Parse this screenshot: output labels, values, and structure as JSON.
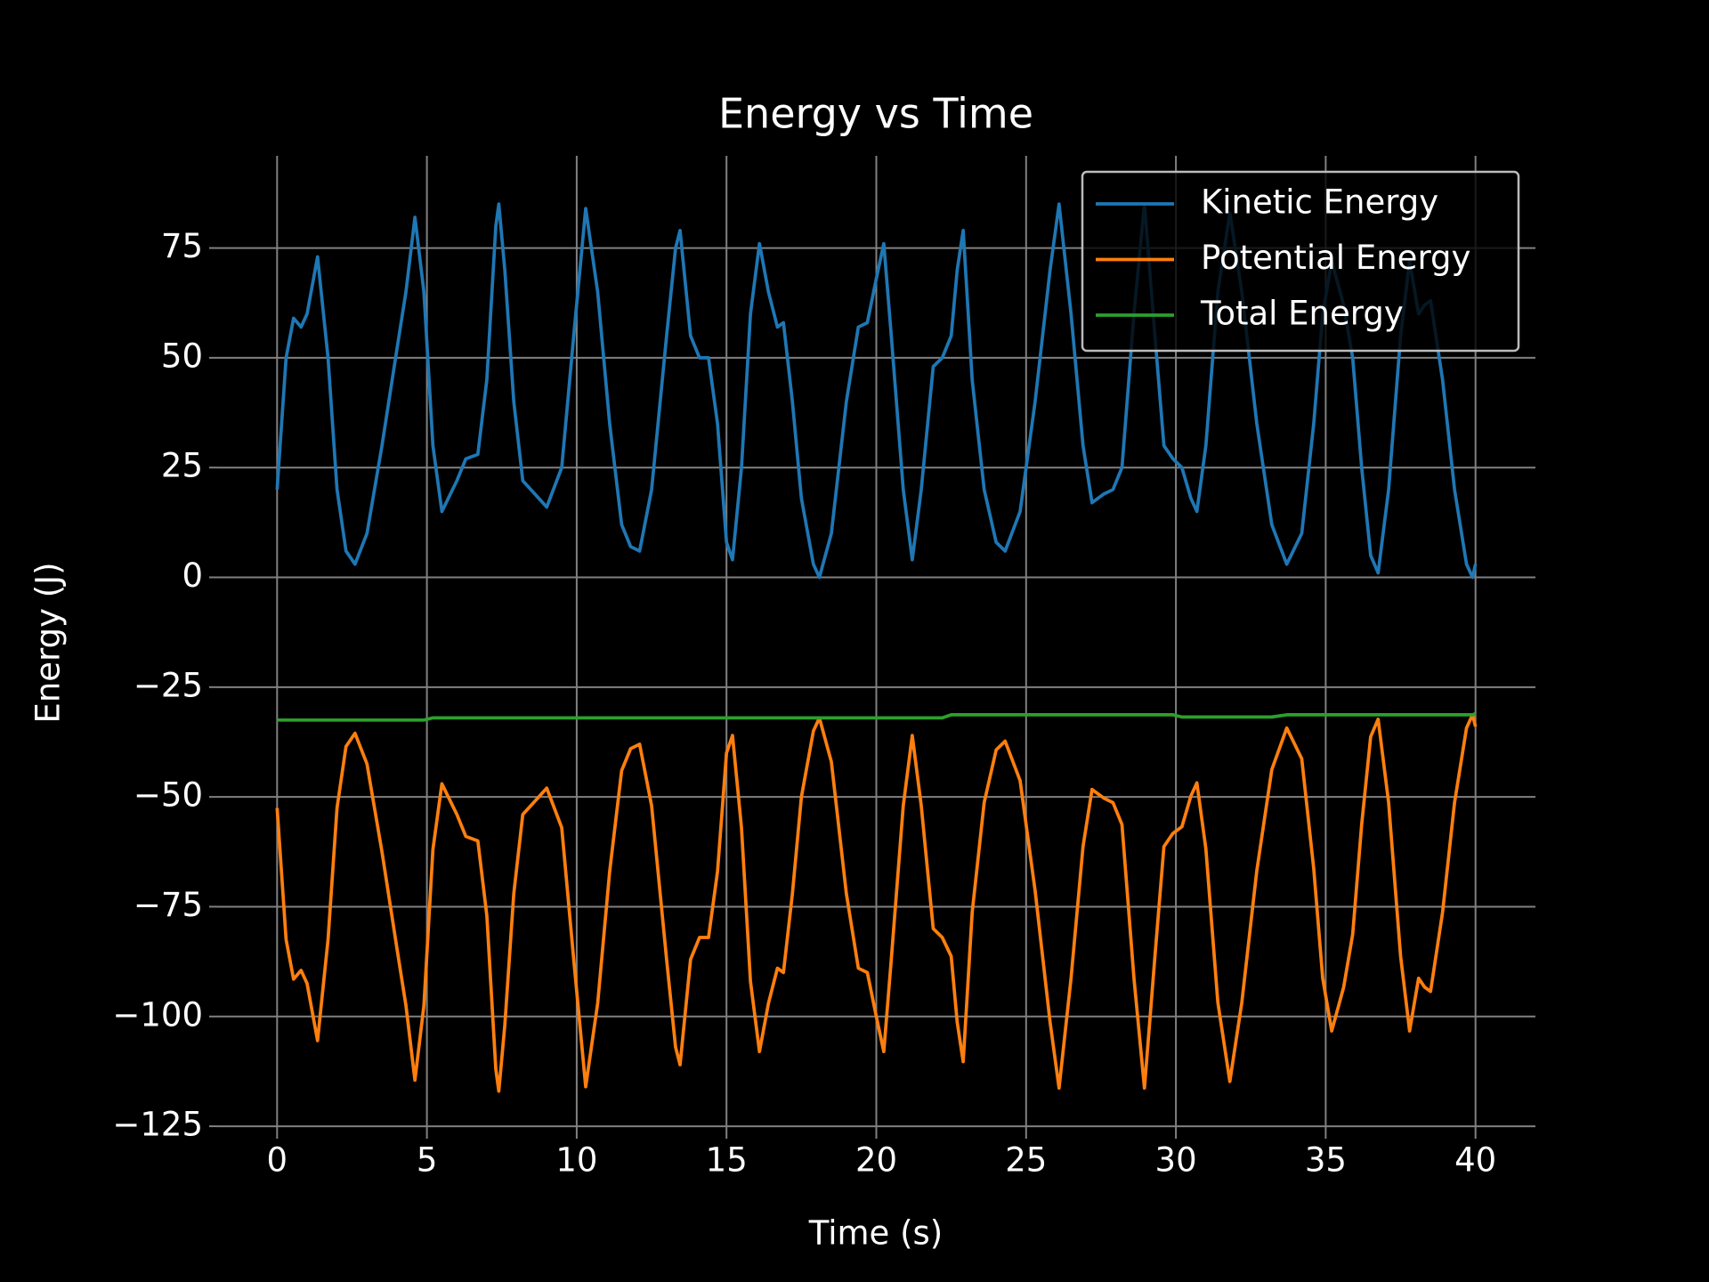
{
  "chart_data": {
    "type": "line",
    "title": "Energy vs Time",
    "xlabel": "Time (s)",
    "ylabel": "Energy (J)",
    "x": [
      0,
      0.3,
      0.55,
      0.8,
      1.0,
      1.35,
      1.7,
      2.0,
      2.3,
      2.6,
      3.0,
      3.5,
      4.0,
      4.3,
      4.6,
      4.9,
      5.2,
      5.5,
      6.0,
      6.3,
      6.7,
      7.0,
      7.3,
      7.4,
      7.6,
      7.9,
      8.2,
      8.6,
      9.0,
      9.5,
      9.9,
      10.3,
      10.7,
      11.1,
      11.5,
      11.8,
      12.1,
      12.5,
      13.0,
      13.3,
      13.45,
      13.8,
      14.1,
      14.4,
      14.7,
      15.0,
      15.2,
      15.5,
      15.8,
      16.1,
      16.4,
      16.7,
      16.9,
      17.2,
      17.5,
      17.9,
      18.1,
      18.5,
      19.0,
      19.4,
      19.7,
      20.0,
      20.25,
      20.5,
      20.9,
      21.2,
      21.5,
      21.9,
      22.2,
      22.5,
      22.7,
      22.9,
      23.2,
      23.6,
      24.0,
      24.3,
      24.8,
      25.3,
      25.8,
      26.1,
      26.5,
      26.9,
      27.2,
      27.6,
      27.9,
      28.2,
      28.6,
      28.95,
      29.3,
      29.6,
      29.9,
      30.2,
      30.5,
      30.7,
      31.0,
      31.4,
      31.8,
      32.2,
      32.7,
      33.2,
      33.7,
      34.2,
      34.6,
      34.9,
      35.2,
      35.6,
      35.9,
      36.2,
      36.5,
      36.75,
      37.1,
      37.5,
      37.8,
      38.1,
      38.3,
      38.5,
      38.9,
      39.3,
      39.7,
      39.9,
      40.0
    ],
    "series": [
      {
        "name": "Kinetic Energy",
        "color": "#1f77b4",
        "values": [
          20,
          50,
          59,
          57,
          60,
          73,
          50,
          20,
          6,
          3,
          10,
          30,
          52,
          65,
          82,
          65,
          30,
          15,
          22,
          27,
          28,
          45,
          80,
          85,
          70,
          40,
          22,
          19,
          16,
          25,
          55,
          84,
          65,
          35,
          12,
          7,
          6,
          20,
          55,
          75,
          79,
          55,
          50,
          50,
          35,
          8,
          4,
          25,
          60,
          76,
          65,
          57,
          58,
          40,
          18,
          3,
          0,
          10,
          40,
          57,
          58,
          68,
          76,
          55,
          20,
          4,
          20,
          48,
          50,
          55,
          70,
          79,
          45,
          20,
          8,
          6,
          15,
          40,
          70,
          85,
          60,
          30,
          17,
          19,
          20,
          25,
          60,
          85,
          55,
          30,
          27,
          25,
          18,
          15,
          30,
          65,
          83,
          65,
          35,
          12,
          3,
          10,
          35,
          60,
          72,
          62,
          50,
          25,
          5,
          1,
          20,
          55,
          72,
          60,
          62,
          63,
          45,
          20,
          3,
          0,
          3
        ]
      },
      {
        "name": "Potential Energy",
        "color": "#ff7f0e",
        "values": [
          -52.5,
          -82.5,
          -91.5,
          -89.5,
          -92.5,
          -105.5,
          -82.5,
          -52.5,
          -38.5,
          -35.5,
          -42.5,
          -62.5,
          -84.5,
          -97.5,
          -114.5,
          -97.5,
          -62,
          -47,
          -54,
          -59,
          -60,
          -77,
          -112,
          -117,
          -102,
          -72,
          -54,
          -51,
          -48,
          -57,
          -87,
          -116,
          -97,
          -67,
          -44,
          -39,
          -38,
          -52,
          -87,
          -107,
          -111,
          -87,
          -82,
          -82,
          -67,
          -40,
          -36,
          -57,
          -92,
          -108,
          -97,
          -89,
          -90,
          -72,
          -50,
          -35,
          -32,
          -42,
          -72,
          -89,
          -90,
          -100,
          -108,
          -87,
          -52,
          -36,
          -52,
          -80,
          -82,
          -86.3,
          -101.3,
          -110.3,
          -76.3,
          -51.3,
          -39.3,
          -37.3,
          -46.3,
          -71.3,
          -101.3,
          -116.3,
          -91.3,
          -61.3,
          -48.3,
          -50.3,
          -51.3,
          -56.3,
          -91.3,
          -116.3,
          -86.3,
          -61.3,
          -58.3,
          -56.8,
          -49.8,
          -46.8,
          -61.8,
          -96.8,
          -114.8,
          -96.8,
          -66.8,
          -43.8,
          -34.3,
          -41.3,
          -66.3,
          -91.3,
          -103.3,
          -93.3,
          -81.3,
          -56.3,
          -36.3,
          -32.3,
          -51.3,
          -86.3,
          -103.3,
          -91.3,
          -93.3,
          -94.3,
          -76.3,
          -51.3,
          -34.3,
          -31.3,
          -34
        ]
      },
      {
        "name": "Total Energy",
        "color": "#2ca02c",
        "values": [
          -32.5,
          -32.5,
          -32.5,
          -32.5,
          -32.5,
          -32.5,
          -32.5,
          -32.5,
          -32.5,
          -32.5,
          -32.5,
          -32.5,
          -32.5,
          -32.5,
          -32.5,
          -32.5,
          -32,
          -32,
          -32,
          -32,
          -32,
          -32,
          -32,
          -32,
          -32,
          -32,
          -32,
          -32,
          -32,
          -32,
          -32,
          -32,
          -32,
          -32,
          -32,
          -32,
          -32,
          -32,
          -32,
          -32,
          -32,
          -32,
          -32,
          -32,
          -32,
          -32,
          -32,
          -32,
          -32,
          -32,
          -32,
          -32,
          -32,
          -32,
          -32,
          -32,
          -32,
          -32,
          -32,
          -32,
          -32,
          -32,
          -32,
          -32,
          -32,
          -32,
          -32,
          -32,
          -32,
          -31.3,
          -31.3,
          -31.3,
          -31.3,
          -31.3,
          -31.3,
          -31.3,
          -31.3,
          -31.3,
          -31.3,
          -31.3,
          -31.3,
          -31.3,
          -31.3,
          -31.3,
          -31.3,
          -31.3,
          -31.3,
          -31.3,
          -31.3,
          -31.3,
          -31.3,
          -31.8,
          -31.8,
          -31.8,
          -31.8,
          -31.8,
          -31.8,
          -31.8,
          -31.8,
          -31.8,
          -31.3,
          -31.3,
          -31.3,
          -31.3,
          -31.3,
          -31.3,
          -31.3,
          -31.3,
          -31.3,
          -31.3,
          -31.3,
          -31.3,
          -31.3,
          -31.3,
          -31.3,
          -31.3,
          -31.3,
          -31.3,
          -31.3,
          -31.3,
          -31
        ]
      }
    ],
    "xlim": [
      -2,
      42
    ],
    "ylim": [
      -126,
      96
    ],
    "xticks": [
      0,
      5,
      10,
      15,
      20,
      25,
      30,
      35,
      40
    ],
    "yticks": [
      {
        "value": -125,
        "label": "−125"
      },
      {
        "value": -100,
        "label": "−100"
      },
      {
        "value": -75,
        "label": "−75"
      },
      {
        "value": -50,
        "label": "−50"
      },
      {
        "value": -25,
        "label": "−25"
      },
      0,
      25,
      50,
      75
    ],
    "grid": true,
    "legend": "upper right"
  }
}
